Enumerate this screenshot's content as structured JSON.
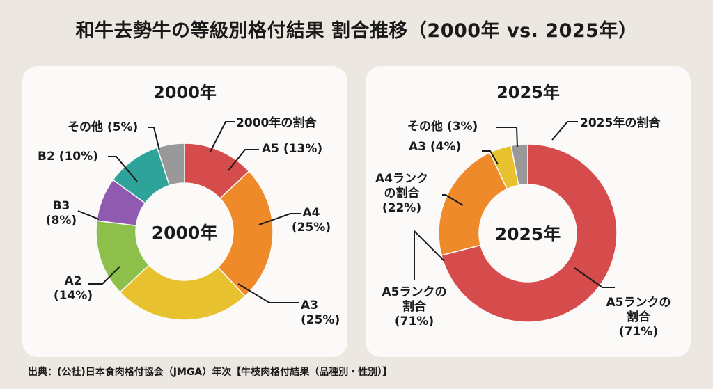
{
  "title": "和牛去勢牛の等級別格付結果 割合推移（2000年 vs. 2025年）",
  "footer": "出典：(公社)日本食肉格付協会（JMGA）年次【牛枝肉格付結果（品種別・性別）】",
  "chart_data": [
    {
      "type": "pie",
      "title": "2000年",
      "center_label": "2000年",
      "legend_note": "2000年の割合",
      "slices": [
        {
          "name": "A5",
          "value": 13,
          "color": "#d64b4b",
          "label": [
            "A5 (13%)"
          ]
        },
        {
          "name": "A4",
          "value": 25,
          "color": "#ef8a2a",
          "label": [
            "A4",
            "(25%)"
          ]
        },
        {
          "name": "A3",
          "value": 25,
          "color": "#e8c22e",
          "label": [
            "A3",
            "(25%)"
          ]
        },
        {
          "name": "A2",
          "value": 14,
          "color": "#8cc04a",
          "label": [
            "A2",
            "(14%)"
          ]
        },
        {
          "name": "B3",
          "value": 8,
          "color": "#8f5ab0",
          "label": [
            "B3",
            "(8%)"
          ]
        },
        {
          "name": "B2",
          "value": 10,
          "color": "#2ea39a",
          "label": [
            "B2 (10%)"
          ]
        },
        {
          "name": "その他",
          "value": 5,
          "color": "#999999",
          "label": [
            "その他 (5%)"
          ]
        }
      ]
    },
    {
      "type": "pie",
      "title": "2025年",
      "center_label": "2025年",
      "legend_note": "2025年の割合",
      "slices": [
        {
          "name": "A5",
          "value": 71,
          "color": "#d64b4b",
          "label": [
            "A5ランクの",
            "割合",
            "(71%)"
          ]
        },
        {
          "name": "A4",
          "value": 22,
          "color": "#ef8a2a",
          "label": [
            "A4ランク",
            "の割合",
            "(22%)"
          ]
        },
        {
          "name": "A3",
          "value": 4,
          "color": "#e8c22e",
          "label": [
            "A3 (4%)"
          ]
        },
        {
          "name": "その他",
          "value": 3,
          "color": "#999999",
          "label": [
            "その他 (3%)"
          ]
        }
      ],
      "extra_label": [
        "A5ランクの",
        "割合",
        "(71%)"
      ]
    }
  ]
}
